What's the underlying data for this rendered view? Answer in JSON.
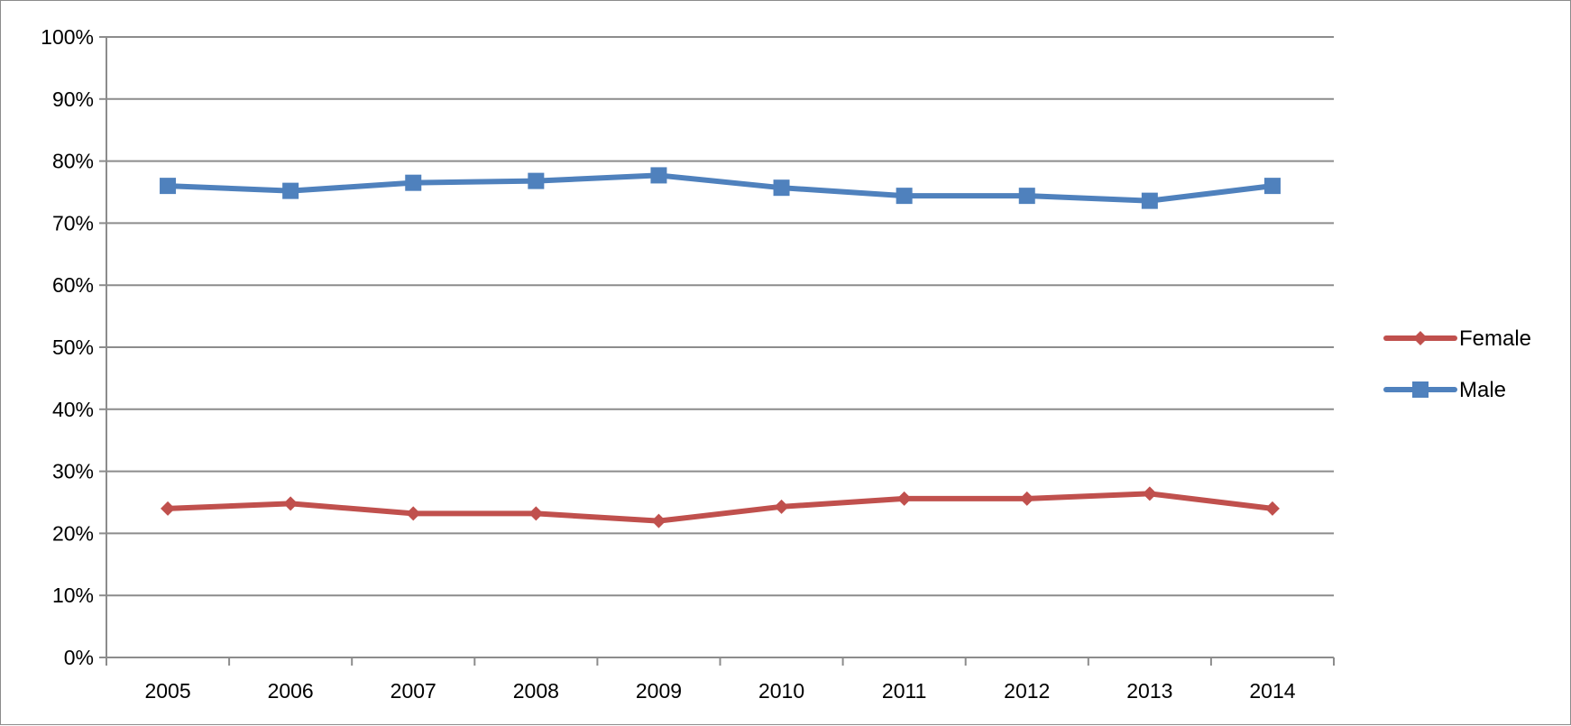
{
  "chart_data": {
    "type": "line",
    "title": "",
    "xlabel": "",
    "ylabel": "",
    "x": [
      "2005",
      "2006",
      "2007",
      "2008",
      "2009",
      "2010",
      "2011",
      "2012",
      "2013",
      "2014"
    ],
    "ylim": [
      0,
      100
    ],
    "y_ticks": [
      "0%",
      "10%",
      "20%",
      "30%",
      "40%",
      "50%",
      "60%",
      "70%",
      "80%",
      "90%",
      "100%"
    ],
    "grid": true,
    "legend_position": "right",
    "series": [
      {
        "name": "Female",
        "color": "#c0504d",
        "marker": "diamond",
        "values": [
          24,
          24.8,
          23.2,
          23.2,
          22,
          24.3,
          25.6,
          25.6,
          26.4,
          24
        ]
      },
      {
        "name": "Male",
        "color": "#4f81bd",
        "marker": "square",
        "values": [
          76,
          75.2,
          76.5,
          76.8,
          77.7,
          75.7,
          74.4,
          74.4,
          73.6,
          76
        ]
      }
    ]
  }
}
